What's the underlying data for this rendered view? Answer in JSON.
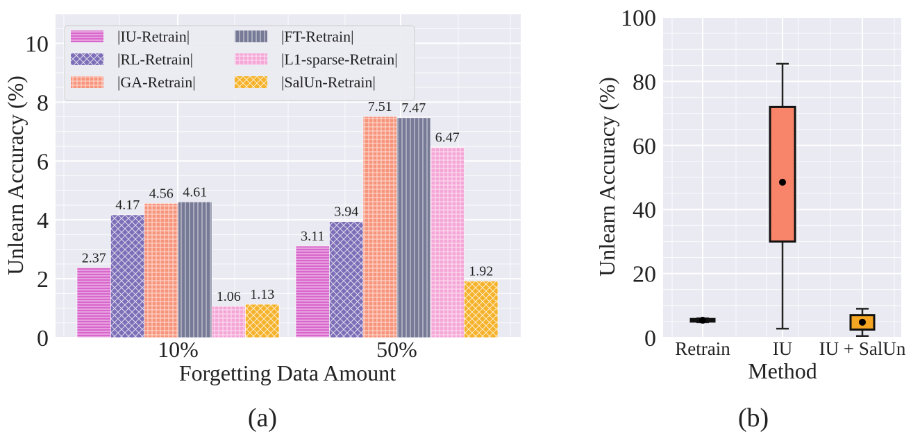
{
  "chart_data": [
    {
      "type": "bar",
      "panel_label": "(a)",
      "xlabel": "Forgetting Data Amount",
      "ylabel": "Unlearn Accuracy (%)",
      "ylim": [
        0,
        11
      ],
      "yticks": [
        0,
        2,
        4,
        6,
        8,
        10
      ],
      "grid": true,
      "legend_position": "top-left",
      "categories": [
        "10%",
        "50%"
      ],
      "series": [
        {
          "name": "|IU-Retrain|",
          "values": [
            2.37,
            3.11
          ],
          "labels": [
            "2.37",
            "3.11"
          ],
          "color": "#d966cc",
          "hatch": "hlines"
        },
        {
          "name": "|RL-Retrain|",
          "values": [
            4.17,
            3.94
          ],
          "labels": [
            "4.17",
            "3.94"
          ],
          "color": "#7d6eb7",
          "hatch": "cross"
        },
        {
          "name": "|GA-Retrain|",
          "values": [
            4.56,
            7.51
          ],
          "labels": [
            "4.56",
            "7.51"
          ],
          "color": "#f7957c",
          "hatch": "grid"
        },
        {
          "name": "|FT-Retrain|",
          "values": [
            4.61,
            7.47
          ],
          "labels": [
            "4.61",
            "7.47"
          ],
          "color": "#777a96",
          "hatch": "vlines"
        },
        {
          "name": "|L1-sparse-Retrain|",
          "values": [
            1.06,
            6.47
          ],
          "labels": [
            "1.06",
            "6.47"
          ],
          "color": "#f4a6d6",
          "hatch": "grid"
        },
        {
          "name": "|SalUn-Retrain|",
          "values": [
            1.13,
            1.92
          ],
          "labels": [
            "1.13",
            "1.92"
          ],
          "color": "#f5b22b",
          "hatch": "cross"
        }
      ]
    },
    {
      "type": "box",
      "panel_label": "(b)",
      "xlabel": "Method",
      "ylabel": "Unlearn Accuracy (%)",
      "ylim": [
        0,
        100
      ],
      "yticks": [
        0,
        20,
        40,
        60,
        80,
        100
      ],
      "grid": true,
      "categories": [
        "Retrain",
        "IU",
        "IU + SalUn"
      ],
      "boxes": [
        {
          "name": "Retrain",
          "whisker_low": 4.8,
          "q1": 5.0,
          "q3": 5.8,
          "whisker_high": 6.0,
          "mean": 5.4,
          "color": "#111111"
        },
        {
          "name": "IU",
          "whisker_low": 2.8,
          "q1": 30.0,
          "q3": 72.0,
          "whisker_high": 85.5,
          "mean": 48.5,
          "color": "#f88469"
        },
        {
          "name": "IU + SalUn",
          "whisker_low": 0.5,
          "q1": 2.5,
          "q3": 7.0,
          "whisker_high": 9.0,
          "mean": 4.8,
          "color": "#f5a623"
        }
      ]
    }
  ]
}
